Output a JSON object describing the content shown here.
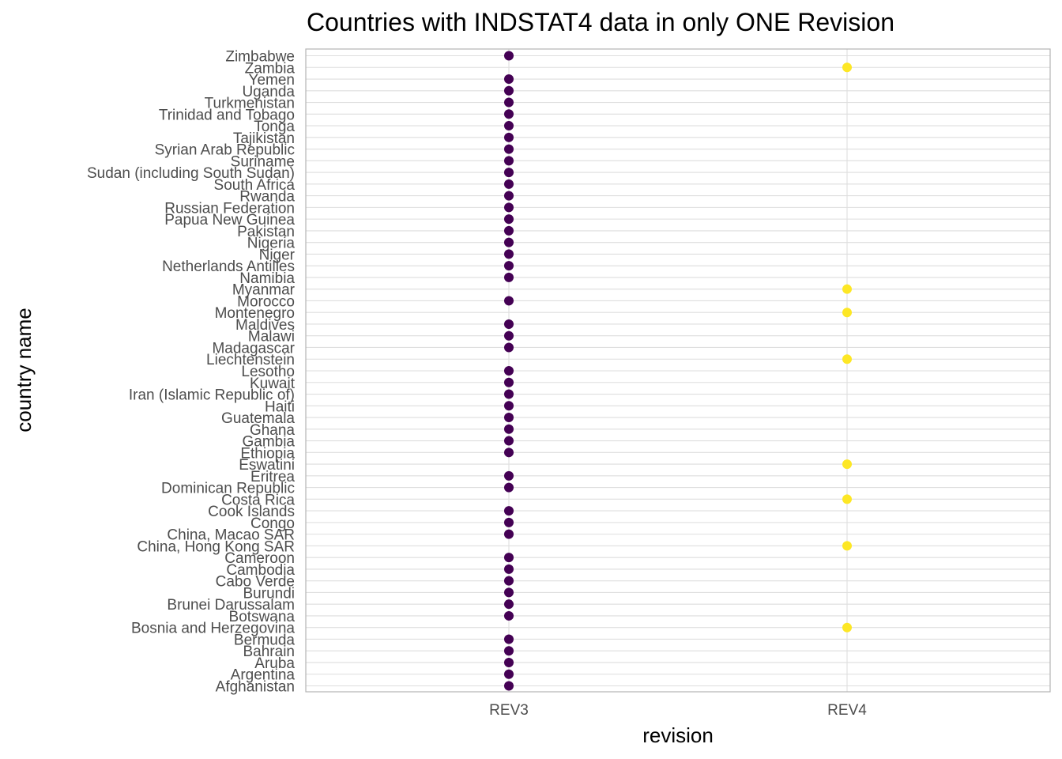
{
  "chart_data": {
    "type": "scatter",
    "title": "Countries with INDSTAT4 data in only ONE Revision",
    "xlabel": "revision",
    "ylabel": "country name",
    "x_categories": [
      "REV3",
      "REV4"
    ],
    "y_categories": [
      "Afghanistan",
      "Argentina",
      "Aruba",
      "Bahrain",
      "Bermuda",
      "Bosnia and Herzegovina",
      "Botswana",
      "Brunei Darussalam",
      "Burundi",
      "Cabo Verde",
      "Cambodia",
      "Cameroon",
      "China, Hong Kong SAR",
      "China, Macao SAR",
      "Congo",
      "Cook Islands",
      "Costa Rica",
      "Dominican Republic",
      "Eritrea",
      "Eswatini",
      "Ethiopia",
      "Gambia",
      "Ghana",
      "Guatemala",
      "Haiti",
      "Iran (Islamic Republic of)",
      "Kuwait",
      "Lesotho",
      "Liechtenstein",
      "Madagascar",
      "Malawi",
      "Maldives",
      "Montenegro",
      "Morocco",
      "Myanmar",
      "Namibia",
      "Netherlands Antilles",
      "Niger",
      "Nigeria",
      "Pakistan",
      "Papua New Guinea",
      "Russian Federation",
      "Rwanda",
      "South Africa",
      "Sudan (including South Sudan)",
      "Suriname",
      "Syrian Arab Republic",
      "Tajikistan",
      "Tonga",
      "Trinidad and Tobago",
      "Turkmenistan",
      "Uganda",
      "Yemen",
      "Zambia",
      "Zimbabwe"
    ],
    "points": [
      {
        "country": "Afghanistan",
        "revision": "REV3"
      },
      {
        "country": "Argentina",
        "revision": "REV3"
      },
      {
        "country": "Aruba",
        "revision": "REV3"
      },
      {
        "country": "Bahrain",
        "revision": "REV3"
      },
      {
        "country": "Bermuda",
        "revision": "REV3"
      },
      {
        "country": "Bosnia and Herzegovina",
        "revision": "REV4"
      },
      {
        "country": "Botswana",
        "revision": "REV3"
      },
      {
        "country": "Brunei Darussalam",
        "revision": "REV3"
      },
      {
        "country": "Burundi",
        "revision": "REV3"
      },
      {
        "country": "Cabo Verde",
        "revision": "REV3"
      },
      {
        "country": "Cambodia",
        "revision": "REV3"
      },
      {
        "country": "Cameroon",
        "revision": "REV3"
      },
      {
        "country": "China, Hong Kong SAR",
        "revision": "REV4"
      },
      {
        "country": "China, Macao SAR",
        "revision": "REV3"
      },
      {
        "country": "Congo",
        "revision": "REV3"
      },
      {
        "country": "Cook Islands",
        "revision": "REV3"
      },
      {
        "country": "Costa Rica",
        "revision": "REV4"
      },
      {
        "country": "Dominican Republic",
        "revision": "REV3"
      },
      {
        "country": "Eritrea",
        "revision": "REV3"
      },
      {
        "country": "Eswatini",
        "revision": "REV4"
      },
      {
        "country": "Ethiopia",
        "revision": "REV3"
      },
      {
        "country": "Gambia",
        "revision": "REV3"
      },
      {
        "country": "Ghana",
        "revision": "REV3"
      },
      {
        "country": "Guatemala",
        "revision": "REV3"
      },
      {
        "country": "Haiti",
        "revision": "REV3"
      },
      {
        "country": "Iran (Islamic Republic of)",
        "revision": "REV3"
      },
      {
        "country": "Kuwait",
        "revision": "REV3"
      },
      {
        "country": "Lesotho",
        "revision": "REV3"
      },
      {
        "country": "Liechtenstein",
        "revision": "REV4"
      },
      {
        "country": "Madagascar",
        "revision": "REV3"
      },
      {
        "country": "Malawi",
        "revision": "REV3"
      },
      {
        "country": "Maldives",
        "revision": "REV3"
      },
      {
        "country": "Montenegro",
        "revision": "REV4"
      },
      {
        "country": "Morocco",
        "revision": "REV3"
      },
      {
        "country": "Myanmar",
        "revision": "REV4"
      },
      {
        "country": "Namibia",
        "revision": "REV3"
      },
      {
        "country": "Netherlands Antilles",
        "revision": "REV3"
      },
      {
        "country": "Niger",
        "revision": "REV3"
      },
      {
        "country": "Nigeria",
        "revision": "REV3"
      },
      {
        "country": "Pakistan",
        "revision": "REV3"
      },
      {
        "country": "Papua New Guinea",
        "revision": "REV3"
      },
      {
        "country": "Russian Federation",
        "revision": "REV3"
      },
      {
        "country": "Rwanda",
        "revision": "REV3"
      },
      {
        "country": "South Africa",
        "revision": "REV3"
      },
      {
        "country": "Sudan (including South Sudan)",
        "revision": "REV3"
      },
      {
        "country": "Suriname",
        "revision": "REV3"
      },
      {
        "country": "Syrian Arab Republic",
        "revision": "REV3"
      },
      {
        "country": "Tajikistan",
        "revision": "REV3"
      },
      {
        "country": "Tonga",
        "revision": "REV3"
      },
      {
        "country": "Trinidad and Tobago",
        "revision": "REV3"
      },
      {
        "country": "Turkmenistan",
        "revision": "REV3"
      },
      {
        "country": "Uganda",
        "revision": "REV3"
      },
      {
        "country": "Yemen",
        "revision": "REV3"
      },
      {
        "country": "Zambia",
        "revision": "REV4"
      },
      {
        "country": "Zimbabwe",
        "revision": "REV3"
      }
    ],
    "colors": {
      "REV3": "#440154",
      "REV4": "#fde725"
    },
    "grid": true,
    "legend": "none"
  }
}
